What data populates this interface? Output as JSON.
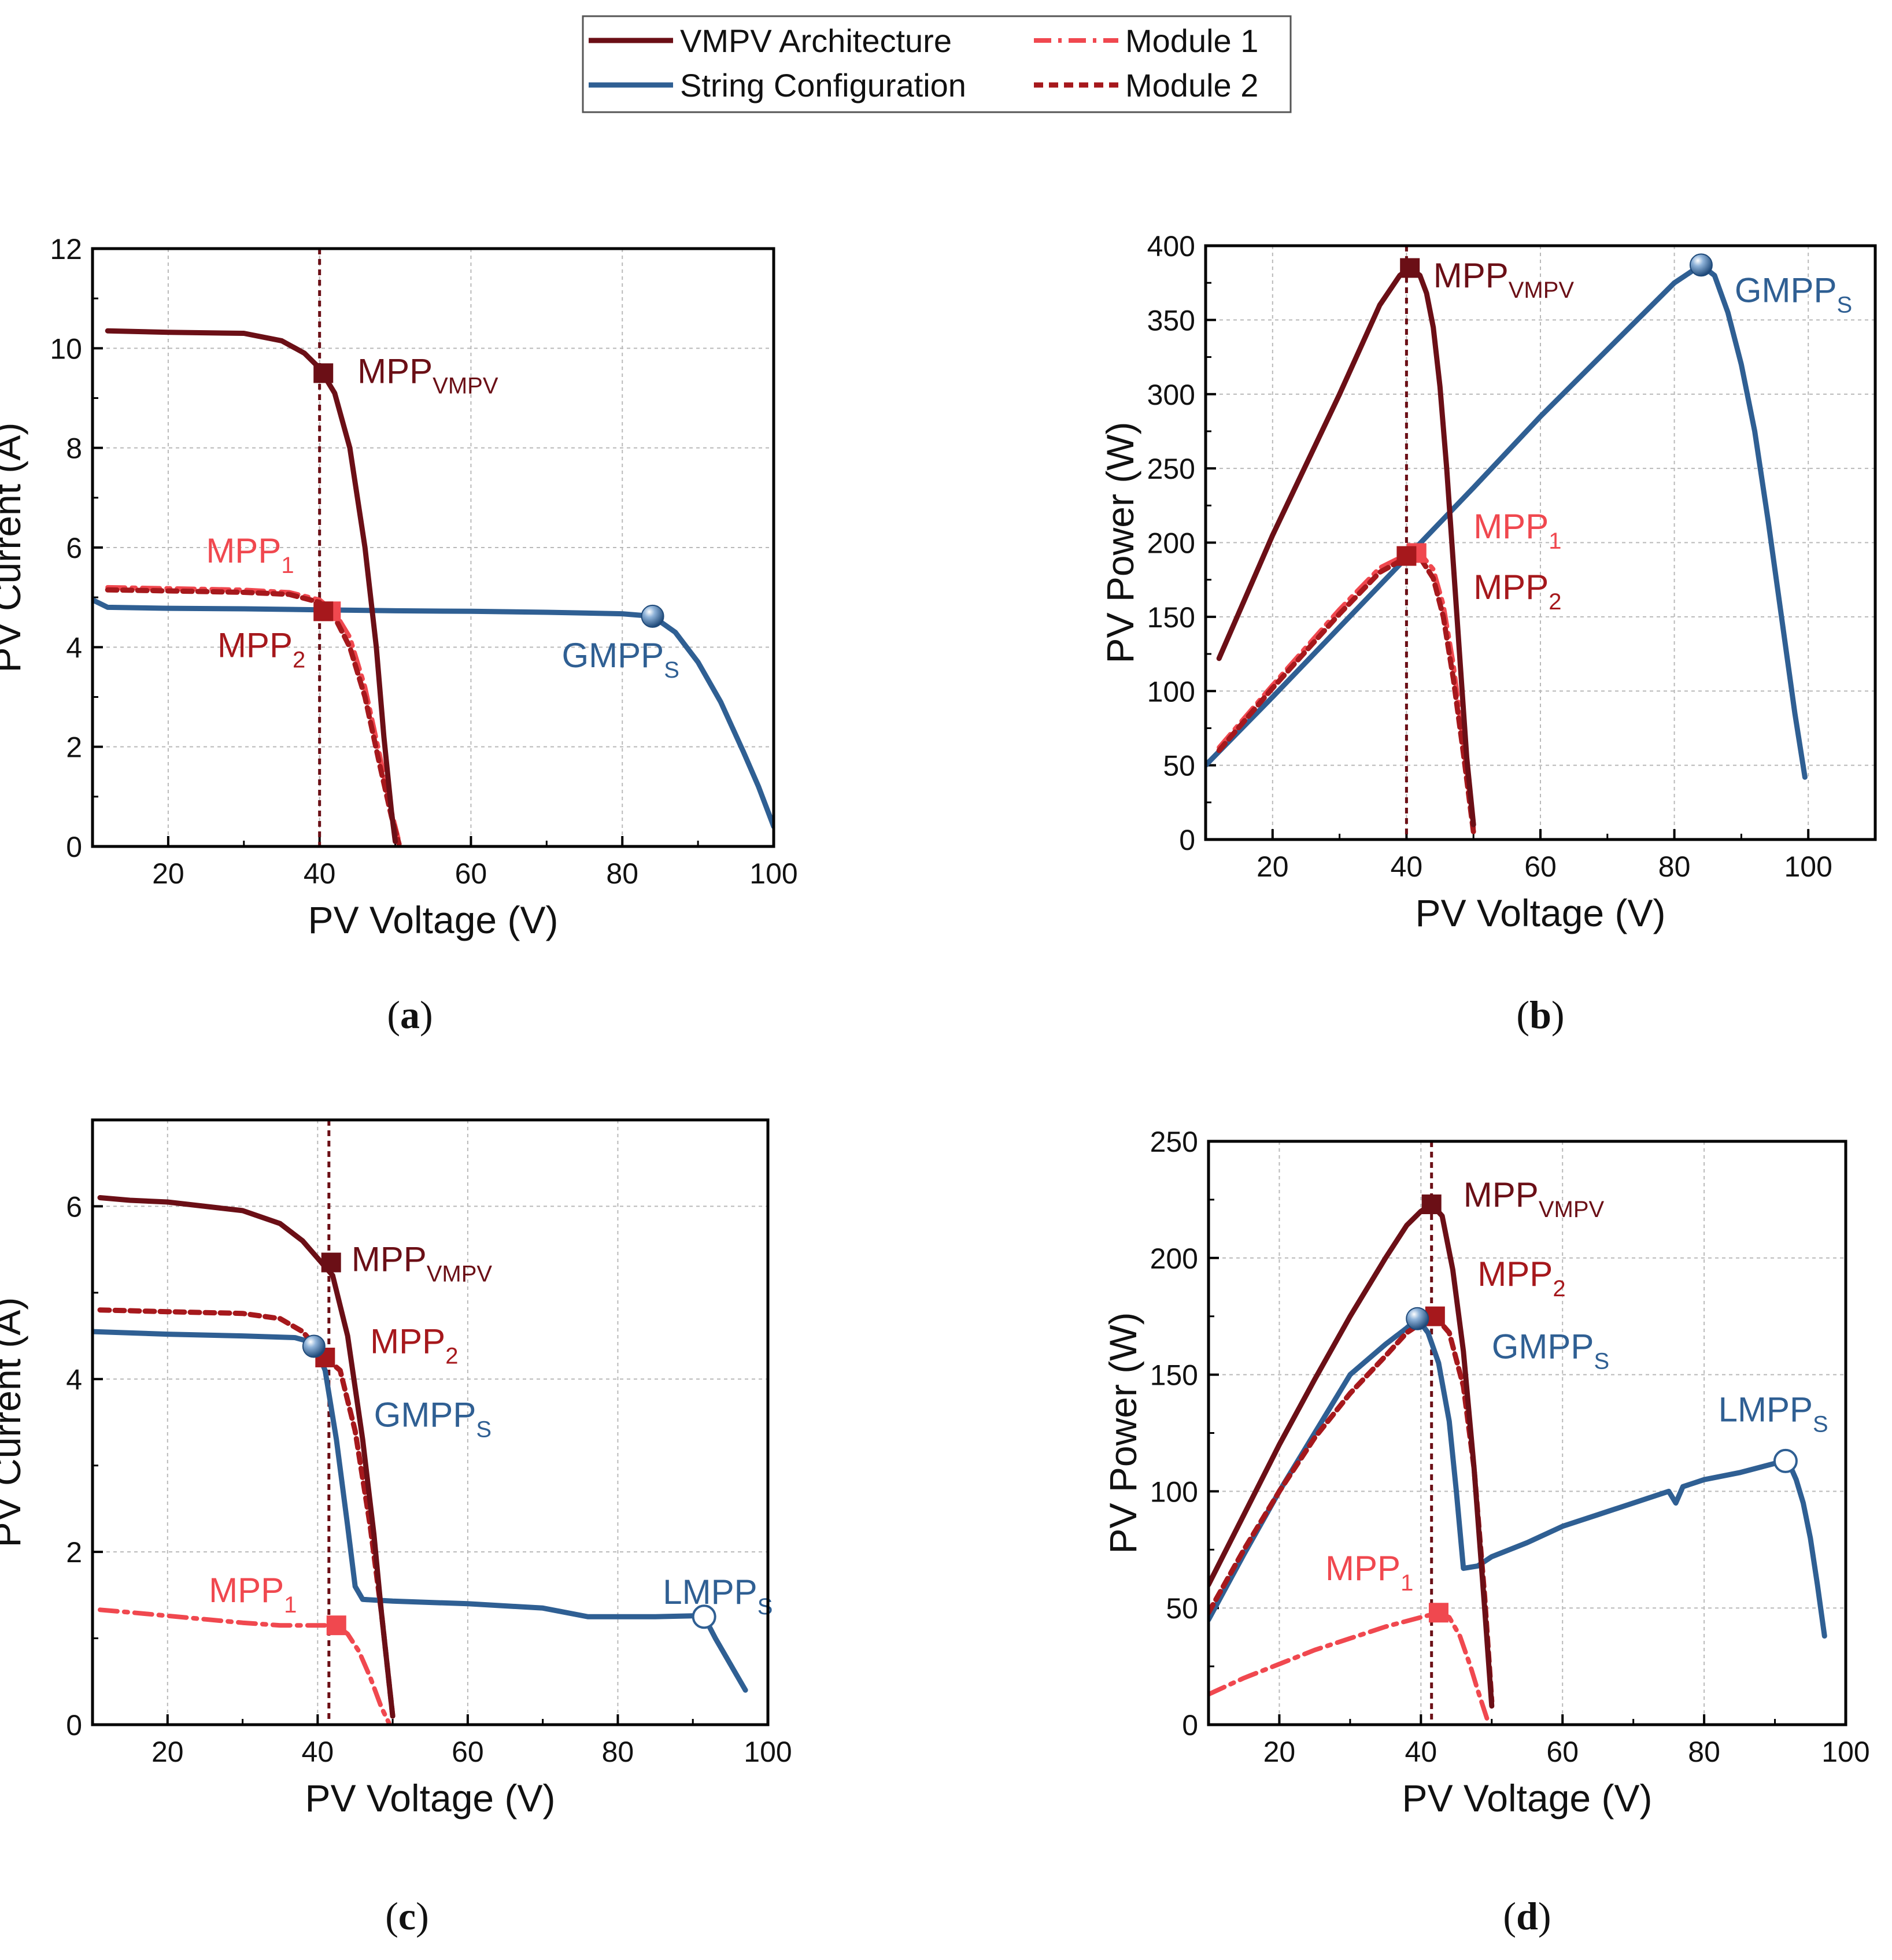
{
  "colors": {
    "vmpv": "#6b0f16",
    "string": "#2f5f93",
    "module1": "#f0484f",
    "module2": "#a6181c",
    "grid": "#b9b9b9",
    "axis": "#000000"
  },
  "legend": {
    "items": [
      {
        "label": "VMPV Architecture",
        "style": "vmpv"
      },
      {
        "label": "Module 1",
        "style": "module1"
      },
      {
        "label": "String Configuration",
        "style": "string"
      },
      {
        "label": "Module 2",
        "style": "module2"
      }
    ]
  },
  "chart_data": [
    {
      "id": "a",
      "panel_label": "(a)",
      "type": "line",
      "xlabel": "PV Voltage (V)",
      "ylabel": "PV Current (A)",
      "xlim": [
        10,
        100
      ],
      "ylim": [
        0,
        12
      ],
      "xticks": [
        20,
        40,
        60,
        80,
        100
      ],
      "yticks": [
        0,
        2,
        4,
        6,
        8,
        10,
        12
      ],
      "grid": true,
      "series": [
        {
          "name": "VMPV Architecture",
          "style": "vmpv",
          "x": [
            12,
            20,
            30,
            35,
            38,
            40,
            42,
            44,
            46,
            47.5,
            48.5,
            49.5,
            50
          ],
          "y": [
            10.35,
            10.32,
            10.3,
            10.15,
            9.9,
            9.6,
            9.1,
            8.0,
            6.0,
            4.0,
            2.2,
            0.7,
            0.1
          ]
        },
        {
          "name": "String Configuration",
          "style": "string",
          "x": [
            10,
            12,
            20,
            30,
            40,
            50,
            60,
            70,
            80,
            84,
            87,
            90,
            93,
            96,
            98,
            100
          ],
          "y": [
            4.95,
            4.8,
            4.78,
            4.77,
            4.75,
            4.73,
            4.72,
            4.7,
            4.67,
            4.62,
            4.3,
            3.7,
            2.9,
            1.9,
            1.2,
            0.4
          ]
        },
        {
          "name": "Module 1",
          "style": "module1",
          "x": [
            12,
            20,
            30,
            36,
            40,
            42,
            44,
            46,
            48,
            49.5,
            50.5
          ],
          "y": [
            5.2,
            5.18,
            5.15,
            5.1,
            4.95,
            4.7,
            4.2,
            3.2,
            1.8,
            0.7,
            0.1
          ]
        },
        {
          "name": "Module 2",
          "style": "module2",
          "x": [
            12,
            20,
            30,
            36,
            40,
            42,
            44,
            46,
            48,
            49.5,
            50.5
          ],
          "y": [
            5.15,
            5.13,
            5.1,
            5.06,
            4.9,
            4.6,
            4.0,
            3.0,
            1.6,
            0.6,
            0.05
          ]
        }
      ],
      "vline": {
        "x": 40,
        "style": "vmpv"
      },
      "markers": [
        {
          "label": "MPP",
          "sub": "VMPV",
          "x": 40.5,
          "y": 9.5,
          "shape": "square",
          "style": "vmpv",
          "lx": 45,
          "ly": 9.3,
          "anchor": "start"
        },
        {
          "label": "MPP",
          "sub": "1",
          "x": 41.5,
          "y": 4.72,
          "shape": "square",
          "style": "module1",
          "lx": 25,
          "ly": 5.7,
          "anchor": "start"
        },
        {
          "label": "MPP",
          "sub": "2",
          "x": 40.5,
          "y": 4.72,
          "shape": "square",
          "style": "module2",
          "lx": 26.5,
          "ly": 3.8,
          "anchor": "start"
        },
        {
          "label": "GMPP",
          "sub": "S",
          "x": 84,
          "y": 4.62,
          "shape": "sphere",
          "style": "string",
          "lx": 72,
          "ly": 3.6,
          "anchor": "start"
        }
      ]
    },
    {
      "id": "b",
      "panel_label": "(b)",
      "type": "line",
      "xlabel": "PV Voltage (V)",
      "ylabel": "PV Power (W)",
      "xlim": [
        10,
        110
      ],
      "ylim": [
        0,
        400
      ],
      "xticks": [
        20,
        40,
        60,
        80,
        100
      ],
      "yticks": [
        0,
        50,
        100,
        150,
        200,
        250,
        300,
        350,
        400
      ],
      "grid": true,
      "series": [
        {
          "name": "VMPV Architecture",
          "style": "vmpv",
          "x": [
            12,
            20,
            30,
            36,
            39,
            40.5,
            42,
            43,
            44,
            45,
            46,
            47,
            48,
            49,
            50
          ],
          "y": [
            122,
            205,
            300,
            360,
            380,
            385,
            380,
            368,
            345,
            305,
            250,
            185,
            120,
            55,
            10
          ]
        },
        {
          "name": "String Configuration",
          "style": "string",
          "x": [
            10,
            20,
            30,
            40,
            50,
            60,
            70,
            80,
            84,
            86,
            88,
            90,
            92,
            94,
            96,
            98,
            99.5
          ],
          "y": [
            50,
            96,
            143,
            190,
            237,
            285,
            330,
            375,
            387,
            380,
            355,
            320,
            275,
            215,
            150,
            85,
            42
          ]
        },
        {
          "name": "Module 1",
          "style": "module1",
          "x": [
            12,
            20,
            30,
            36,
            40,
            42,
            44,
            45.5,
            47,
            48.5,
            50
          ],
          "y": [
            62,
            104,
            155,
            183,
            192,
            193,
            182,
            158,
            118,
            65,
            8
          ]
        },
        {
          "name": "Module 2",
          "style": "module2",
          "x": [
            12,
            20,
            30,
            36,
            40,
            42,
            44,
            45.5,
            47,
            48.5,
            50
          ],
          "y": [
            60,
            102,
            152,
            180,
            190,
            190,
            176,
            150,
            108,
            58,
            5
          ]
        }
      ],
      "vline": {
        "x": 40,
        "style": "vmpv"
      },
      "markers": [
        {
          "label": "MPP",
          "sub": "VMPV",
          "x": 40.5,
          "y": 385,
          "shape": "square",
          "style": "vmpv",
          "lx": 44,
          "ly": 372,
          "anchor": "start"
        },
        {
          "label": "MPP",
          "sub": "1",
          "x": 41.5,
          "y": 193,
          "shape": "square",
          "style": "module1",
          "lx": 50,
          "ly": 203,
          "anchor": "start"
        },
        {
          "label": "MPP",
          "sub": "2",
          "x": 40,
          "y": 191,
          "shape": "square",
          "style": "module2",
          "lx": 50,
          "ly": 162,
          "anchor": "start"
        },
        {
          "label": "GMPP",
          "sub": "S",
          "x": 84,
          "y": 387,
          "shape": "sphere",
          "style": "string",
          "lx": 89,
          "ly": 362,
          "anchor": "start"
        }
      ]
    },
    {
      "id": "c",
      "panel_label": "(c)",
      "type": "line",
      "xlabel": "PV Voltage (V)",
      "ylabel": "PV Current (A)",
      "xlim": [
        10,
        100
      ],
      "ylim": [
        0,
        7
      ],
      "xticks": [
        20,
        40,
        60,
        80,
        100
      ],
      "yticks": [
        0,
        2,
        4,
        6
      ],
      "grid": true,
      "series": [
        {
          "name": "VMPV Architecture",
          "style": "vmpv",
          "x": [
            11,
            15,
            20,
            30,
            35,
            38,
            40,
            42,
            44,
            46,
            47.5,
            48.5,
            49.5,
            50
          ],
          "y": [
            6.1,
            6.07,
            6.05,
            5.95,
            5.8,
            5.6,
            5.4,
            5.2,
            4.5,
            3.3,
            2.2,
            1.3,
            0.5,
            0.1
          ]
        },
        {
          "name": "String Configuration",
          "style": "string",
          "x": [
            10,
            20,
            30,
            37,
            39.5,
            41,
            42.5,
            44,
            45,
            46,
            50,
            60,
            70,
            76,
            80,
            85,
            90,
            91.5,
            93,
            95,
            97
          ],
          "y": [
            4.55,
            4.52,
            4.5,
            4.48,
            4.42,
            4.1,
            3.3,
            2.3,
            1.6,
            1.45,
            1.43,
            1.4,
            1.35,
            1.25,
            1.25,
            1.25,
            1.26,
            1.25,
            1.0,
            0.7,
            0.4
          ]
        },
        {
          "name": "Module 1",
          "style": "module1",
          "x": [
            11,
            15,
            20,
            25,
            30,
            35,
            40,
            42.5,
            44,
            45.5,
            47,
            48.5,
            49.5
          ],
          "y": [
            1.33,
            1.3,
            1.26,
            1.22,
            1.18,
            1.15,
            1.15,
            1.15,
            1.05,
            0.85,
            0.55,
            0.2,
            0.02
          ]
        },
        {
          "name": "Module 2",
          "style": "module2",
          "x": [
            11,
            20,
            30,
            35,
            38,
            40,
            41,
            43,
            45,
            47,
            48.5,
            49.5,
            50
          ],
          "y": [
            4.8,
            4.78,
            4.76,
            4.7,
            4.55,
            4.35,
            4.25,
            4.1,
            3.4,
            2.3,
            1.3,
            0.5,
            0.1
          ]
        }
      ],
      "vline": {
        "x": 41.5,
        "style": "vmpv"
      },
      "markers": [
        {
          "label": "MPP",
          "sub": "VMPV",
          "x": 41.8,
          "y": 5.35,
          "shape": "square",
          "style": "vmpv",
          "lx": 44.5,
          "ly": 5.25,
          "anchor": "start"
        },
        {
          "label": "MPP",
          "sub": "2",
          "x": 41,
          "y": 4.25,
          "shape": "square",
          "style": "module2",
          "lx": 47,
          "ly": 4.3,
          "anchor": "start"
        },
        {
          "label": "GMPP",
          "sub": "S",
          "x": 39.5,
          "y": 4.38,
          "shape": "sphere",
          "style": "string",
          "lx": 47.5,
          "ly": 3.45,
          "anchor": "start"
        },
        {
          "label": "MPP",
          "sub": "1",
          "x": 42.5,
          "y": 1.15,
          "shape": "square",
          "style": "module1",
          "lx": 25.5,
          "ly": 1.42,
          "anchor": "start"
        },
        {
          "label": "LMPP",
          "sub": "S",
          "x": 91.5,
          "y": 1.25,
          "shape": "hollow",
          "style": "string",
          "lx": 86,
          "ly": 1.4,
          "anchor": "start"
        }
      ]
    },
    {
      "id": "d",
      "panel_label": "(d)",
      "type": "line",
      "xlabel": "PV Voltage (V)",
      "ylabel": "PV Power (W)",
      "xlim": [
        10,
        100
      ],
      "ylim": [
        0,
        250
      ],
      "xticks": [
        20,
        40,
        60,
        80,
        100
      ],
      "yticks": [
        0,
        50,
        100,
        150,
        200,
        250
      ],
      "grid": true,
      "series": [
        {
          "name": "VMPV Architecture",
          "style": "vmpv",
          "x": [
            10,
            15,
            20,
            25,
            30,
            35,
            38,
            40,
            41.5,
            43,
            44.5,
            46,
            47.5,
            49,
            50
          ],
          "y": [
            60,
            90,
            120,
            148,
            175,
            200,
            214,
            220,
            223,
            218,
            195,
            160,
            110,
            50,
            8
          ]
        },
        {
          "name": "String Configuration",
          "style": "string",
          "x": [
            10,
            15,
            20,
            25,
            30,
            35,
            38,
            39.5,
            41,
            42.5,
            44,
            45,
            46,
            48,
            50,
            55,
            60,
            65,
            70,
            75,
            76,
            77,
            80,
            85,
            90,
            91,
            92,
            93,
            94,
            95,
            96,
            97
          ],
          "y": [
            45,
            73,
            100,
            125,
            150,
            163,
            170,
            174,
            168,
            155,
            130,
            100,
            67,
            68,
            72,
            78,
            85,
            90,
            95,
            100,
            95,
            102,
            105,
            108,
            112,
            114,
            112,
            105,
            95,
            80,
            60,
            38
          ]
        },
        {
          "name": "Module 1",
          "style": "module1",
          "x": [
            10,
            15,
            20,
            25,
            30,
            35,
            40,
            42.5,
            44,
            45.5,
            47,
            48,
            49.5
          ],
          "y": [
            13,
            20,
            26,
            32,
            37,
            42,
            46,
            48,
            46,
            38,
            25,
            15,
            1
          ]
        },
        {
          "name": "Module 2",
          "style": "module2",
          "x": [
            10,
            15,
            20,
            25,
            30,
            35,
            38,
            40,
            42,
            44,
            46,
            47.5,
            49,
            50
          ],
          "y": [
            48,
            75,
            100,
            123,
            142,
            158,
            168,
            172,
            175,
            168,
            145,
            110,
            55,
            10
          ]
        }
      ],
      "vline": {
        "x": 41.5,
        "style": "vmpv"
      },
      "markers": [
        {
          "label": "MPP",
          "sub": "VMPV",
          "x": 41.5,
          "y": 223,
          "shape": "square",
          "style": "vmpv",
          "lx": 46,
          "ly": 222,
          "anchor": "start"
        },
        {
          "label": "MPP",
          "sub": "2",
          "x": 42,
          "y": 175,
          "shape": "square",
          "style": "module2",
          "lx": 48,
          "ly": 188,
          "anchor": "start"
        },
        {
          "label": "GMPP",
          "sub": "S",
          "x": 39.5,
          "y": 174,
          "shape": "sphere",
          "style": "string",
          "lx": 50,
          "ly": 157,
          "anchor": "start"
        },
        {
          "label": "LMPP",
          "sub": "S",
          "x": 91.5,
          "y": 113,
          "shape": "hollow",
          "style": "string",
          "lx": 82,
          "ly": 130,
          "anchor": "start"
        },
        {
          "label": "MPP",
          "sub": "1",
          "x": 42.5,
          "y": 48,
          "shape": "square",
          "style": "module1",
          "lx": 26.5,
          "ly": 62,
          "anchor": "start"
        }
      ]
    }
  ]
}
